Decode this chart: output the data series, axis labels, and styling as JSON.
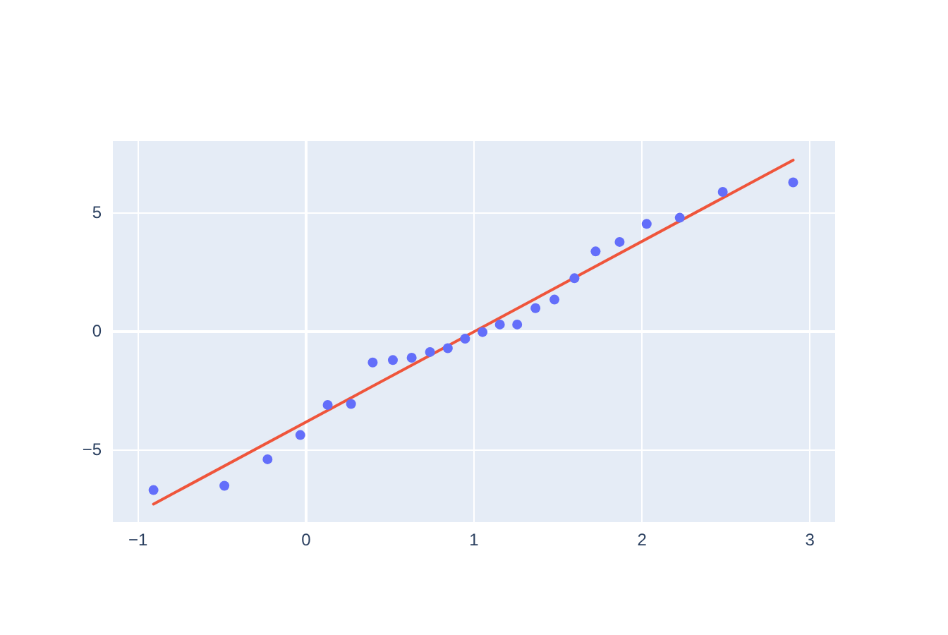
{
  "chart_data": {
    "type": "scatter",
    "x": [
      -0.908,
      -0.486,
      -0.229,
      -0.034,
      0.129,
      0.268,
      0.397,
      0.517,
      0.629,
      0.738,
      0.844,
      0.947,
      1.051,
      1.154,
      1.257,
      1.366,
      1.479,
      1.598,
      1.724,
      1.867,
      2.028,
      2.225,
      2.481,
      2.9
    ],
    "series": [
      {
        "color": "#636efa",
        "values": [
          -6.68,
          -6.5,
          -5.38,
          -4.36,
          -3.09,
          -3.05,
          -1.3,
          -1.2,
          -1.1,
          -0.86,
          -0.7,
          -0.3,
          -0.02,
          0.3,
          0.3,
          0.99,
          1.35,
          2.25,
          3.38,
          3.78,
          4.54,
          4.8,
          5.89,
          6.29
        ]
      },
      {
        "type": "line",
        "color": "#ef553b",
        "x": [
          -0.908,
          2.9
        ],
        "values": [
          -7.27,
          7.23
        ],
        "marker": "none"
      }
    ],
    "xlim": [
      -1.15,
      3.15
    ],
    "ylim": [
      -8.03,
      8.03
    ],
    "xticks": [
      {
        "value": -1,
        "label": "−1"
      },
      0,
      1,
      2,
      3
    ],
    "yticks": [
      {
        "value": -5,
        "label": "−5"
      },
      0,
      5
    ],
    "grid": true,
    "marker": "circle",
    "legend": false
  }
}
